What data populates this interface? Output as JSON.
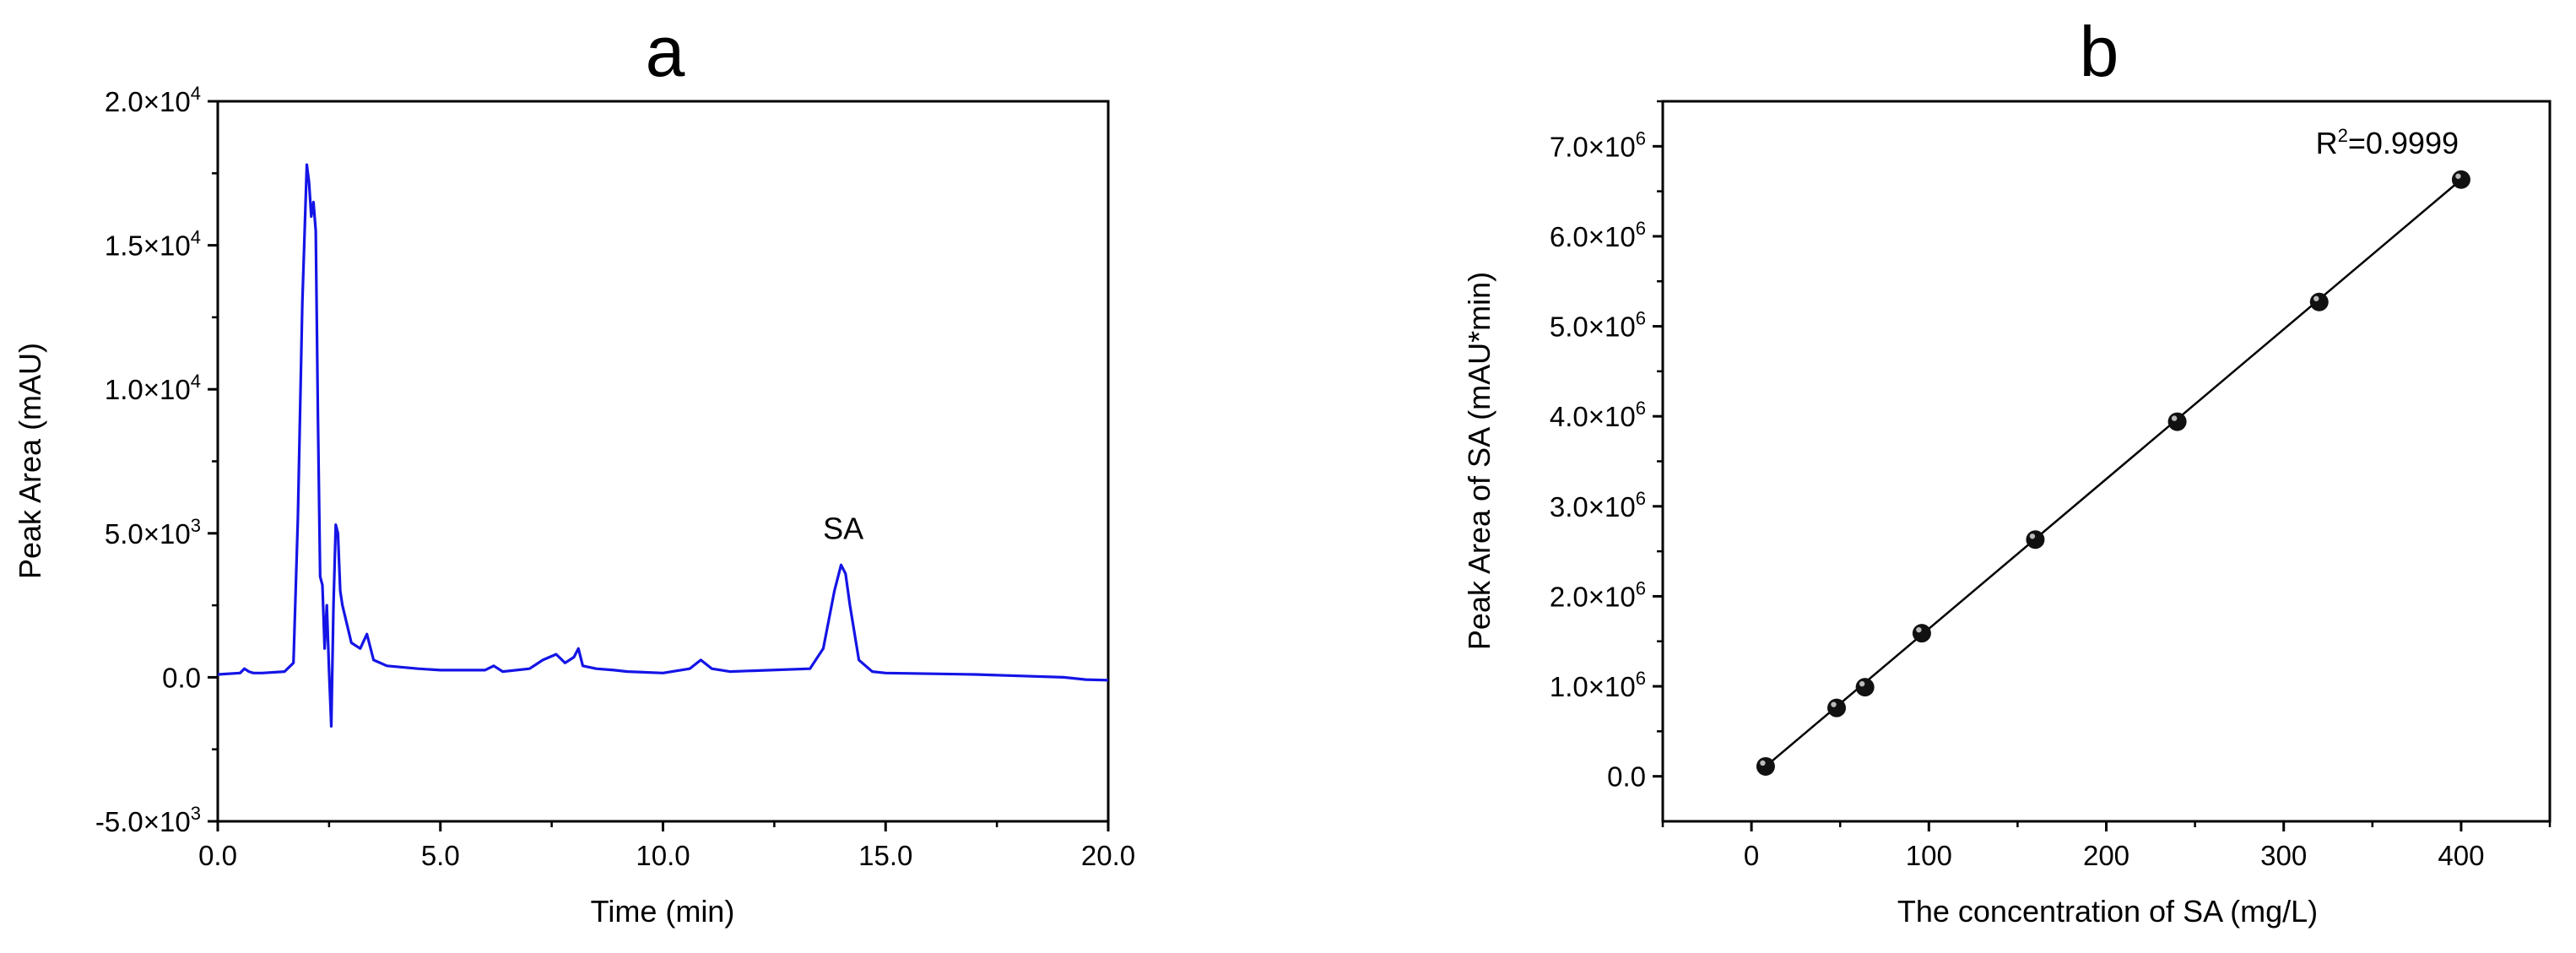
{
  "chart_data": [
    {
      "type": "line",
      "panel": "a",
      "xlabel": "Time (min)",
      "ylabel": "Peak Area (mAU)",
      "xlim": [
        0,
        20
      ],
      "ylim": [
        -5000,
        20000
      ],
      "x_ticks": [
        0,
        5,
        10,
        15,
        20
      ],
      "x_tick_labels": [
        "0.0",
        "5.0",
        "10.0",
        "15.0",
        "20.0"
      ],
      "y_ticks": [
        -5000,
        0,
        5000,
        10000,
        15000,
        20000
      ],
      "y_tick_labels": [
        {
          "m": "-5.0×10",
          "e": "3"
        },
        {
          "m": "0.0",
          "e": ""
        },
        {
          "m": "5.0×10",
          "e": "3"
        },
        {
          "m": "1.0×10",
          "e": "4"
        },
        {
          "m": "1.5×10",
          "e": "4"
        },
        {
          "m": "2.0×10",
          "e": "4"
        }
      ],
      "color": "#1414e6",
      "annotation": {
        "text": "SA",
        "x": 14.05,
        "y": 4800
      },
      "series": [
        {
          "x": [
            0,
            0.5,
            0.6,
            0.7,
            0.8,
            1.0,
            1.5,
            1.7,
            1.8,
            1.9,
            2.0,
            2.05,
            2.1,
            2.15,
            2.2,
            2.25,
            2.3,
            2.35,
            2.4,
            2.45,
            2.5,
            2.55,
            2.6,
            2.65,
            2.7,
            2.75,
            2.8,
            3.0,
            3.2,
            3.35,
            3.5,
            3.8,
            4.5,
            5.0,
            6.0,
            6.2,
            6.4,
            7.0,
            7.3,
            7.6,
            7.8,
            8.0,
            8.1,
            8.2,
            8.5,
            8.9,
            9.2,
            10.0,
            10.6,
            10.85,
            11.1,
            11.5,
            13.3,
            13.6,
            13.85,
            14.0,
            14.1,
            14.2,
            14.4,
            14.7,
            15.0,
            17.0,
            18.0,
            19.0,
            19.5,
            20.0
          ],
          "y": [
            100,
            150,
            300,
            200,
            150,
            150,
            200,
            500,
            5500,
            13000,
            17800,
            17200,
            16000,
            16500,
            15500,
            9000,
            3500,
            3200,
            1000,
            2500,
            200,
            -1700,
            2500,
            5300,
            5000,
            3000,
            2500,
            1200,
            1000,
            1500,
            600,
            400,
            300,
            250,
            250,
            400,
            200,
            300,
            600,
            800,
            500,
            700,
            1000,
            400,
            300,
            250,
            200,
            150,
            300,
            600,
            300,
            200,
            300,
            1000,
            3000,
            3900,
            3600,
            2500,
            600,
            200,
            150,
            100,
            50,
            0,
            -80,
            -100
          ]
        }
      ]
    },
    {
      "type": "scatter",
      "panel": "b",
      "xlabel": "The concentration of SA (mg/L)",
      "ylabel": "Peak Area of SA (mAU*min)",
      "xlim": [
        -50,
        450
      ],
      "ylim": [
        -500000,
        7500000
      ],
      "x_ticks": [
        0,
        100,
        200,
        300,
        400
      ],
      "x_tick_labels": [
        "0",
        "100",
        "200",
        "300",
        "400"
      ],
      "y_ticks": [
        0,
        1000000,
        2000000,
        3000000,
        4000000,
        5000000,
        6000000,
        7000000
      ],
      "y_tick_labels": [
        {
          "m": "0.0",
          "e": ""
        },
        {
          "m": "1.0×10",
          "e": "6"
        },
        {
          "m": "2.0×10",
          "e": "6"
        },
        {
          "m": "3.0×10",
          "e": "6"
        },
        {
          "m": "4.0×10",
          "e": "6"
        },
        {
          "m": "5.0×10",
          "e": "6"
        },
        {
          "m": "6.0×10",
          "e": "6"
        },
        {
          "m": "7.0×10",
          "e": "6"
        }
      ],
      "annotation": {
        "base": "R",
        "sup": "2",
        "rest": "=0.9999"
      },
      "fit_line": {
        "x": [
          8,
          400
        ],
        "y": [
          110000,
          6630000
        ]
      },
      "series": [
        {
          "x": [
            8,
            48,
            64,
            96,
            160,
            240,
            320,
            400
          ],
          "y": [
            110000,
            760000,
            990000,
            1590000,
            2630000,
            3940000,
            5270000,
            6630000
          ]
        }
      ]
    }
  ]
}
